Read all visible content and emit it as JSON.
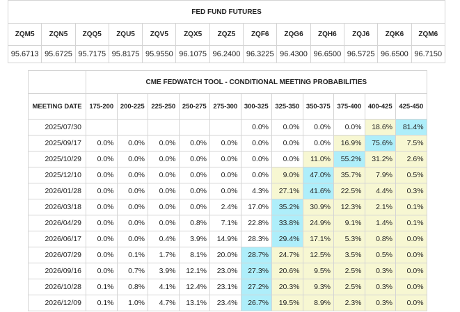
{
  "futures": {
    "title": "FED FUND FUTURES",
    "codes": [
      "ZQM5",
      "ZQN5",
      "ZQQ5",
      "ZQU5",
      "ZQV5",
      "ZQX5",
      "ZQZ5",
      "ZQF6",
      "ZQG6",
      "ZQH6",
      "ZQJ6",
      "ZQK6",
      "ZQM6"
    ],
    "prices": [
      "95.6713",
      "95.6725",
      "95.7175",
      "95.8175",
      "95.9550",
      "96.1075",
      "96.2400",
      "96.3225",
      "96.4300",
      "96.6500",
      "96.5725",
      "96.6500",
      "96.7150"
    ]
  },
  "probabilities": {
    "title": "CME FEDWATCH TOOL - CONDITIONAL MEETING PROBABILITIES",
    "date_header": "MEETING DATE",
    "ranges": [
      "175-200",
      "200-225",
      "225-250",
      "250-275",
      "275-300",
      "300-325",
      "325-350",
      "350-375",
      "375-400",
      "400-425",
      "425-450"
    ],
    "colors": {
      "highlight_max": "#aeeefa",
      "nonzero": "#f7f7d2"
    },
    "rows": [
      {
        "date": "2025/07/30",
        "values": [
          "",
          "",
          "",
          "",
          "",
          "0.0%",
          "0.0%",
          "0.0%",
          "0.0%",
          "18.6%",
          "81.4%"
        ],
        "styles": [
          "",
          "",
          "",
          "",
          "",
          "",
          "",
          "",
          "",
          "y",
          "b"
        ]
      },
      {
        "date": "2025/09/17",
        "values": [
          "0.0%",
          "0.0%",
          "0.0%",
          "0.0%",
          "0.0%",
          "0.0%",
          "0.0%",
          "0.0%",
          "16.9%",
          "75.6%",
          "7.5%"
        ],
        "styles": [
          "",
          "",
          "",
          "",
          "",
          "",
          "",
          "",
          "y",
          "b",
          "y"
        ]
      },
      {
        "date": "2025/10/29",
        "values": [
          "0.0%",
          "0.0%",
          "0.0%",
          "0.0%",
          "0.0%",
          "0.0%",
          "0.0%",
          "11.0%",
          "55.2%",
          "31.2%",
          "2.6%"
        ],
        "styles": [
          "",
          "",
          "",
          "",
          "",
          "",
          "",
          "y",
          "b",
          "y",
          "y"
        ]
      },
      {
        "date": "2025/12/10",
        "values": [
          "0.0%",
          "0.0%",
          "0.0%",
          "0.0%",
          "0.0%",
          "0.0%",
          "9.0%",
          "47.0%",
          "35.7%",
          "7.9%",
          "0.5%"
        ],
        "styles": [
          "",
          "",
          "",
          "",
          "",
          "",
          "y",
          "b",
          "y",
          "y",
          "y"
        ]
      },
      {
        "date": "2026/01/28",
        "values": [
          "0.0%",
          "0.0%",
          "0.0%",
          "0.0%",
          "0.0%",
          "4.3%",
          "27.1%",
          "41.6%",
          "22.5%",
          "4.4%",
          "0.3%"
        ],
        "styles": [
          "",
          "",
          "",
          "",
          "",
          "",
          "y",
          "b",
          "y",
          "y",
          "y"
        ]
      },
      {
        "date": "2026/03/18",
        "values": [
          "0.0%",
          "0.0%",
          "0.0%",
          "0.0%",
          "2.4%",
          "17.0%",
          "35.2%",
          "30.9%",
          "12.3%",
          "2.1%",
          "0.1%"
        ],
        "styles": [
          "",
          "",
          "",
          "",
          "",
          "",
          "b",
          "y",
          "y",
          "y",
          "y"
        ]
      },
      {
        "date": "2026/04/29",
        "values": [
          "0.0%",
          "0.0%",
          "0.0%",
          "0.8%",
          "7.1%",
          "22.8%",
          "33.8%",
          "24.9%",
          "9.1%",
          "1.4%",
          "0.1%"
        ],
        "styles": [
          "",
          "",
          "",
          "",
          "",
          "",
          "b",
          "y",
          "y",
          "y",
          "y"
        ]
      },
      {
        "date": "2026/06/17",
        "values": [
          "0.0%",
          "0.0%",
          "0.4%",
          "3.9%",
          "14.9%",
          "28.3%",
          "29.4%",
          "17.1%",
          "5.3%",
          "0.8%",
          "0.0%"
        ],
        "styles": [
          "",
          "",
          "",
          "",
          "",
          "",
          "b",
          "y",
          "y",
          "y",
          "y"
        ]
      },
      {
        "date": "2026/07/29",
        "values": [
          "0.0%",
          "0.1%",
          "1.7%",
          "8.1%",
          "20.0%",
          "28.7%",
          "24.7%",
          "12.5%",
          "3.5%",
          "0.5%",
          "0.0%"
        ],
        "styles": [
          "",
          "",
          "",
          "",
          "",
          "b",
          "y",
          "y",
          "y",
          "y",
          "y"
        ]
      },
      {
        "date": "2026/09/16",
        "values": [
          "0.0%",
          "0.7%",
          "3.9%",
          "12.1%",
          "23.0%",
          "27.3%",
          "20.6%",
          "9.5%",
          "2.5%",
          "0.3%",
          "0.0%"
        ],
        "styles": [
          "",
          "",
          "",
          "",
          "",
          "b",
          "y",
          "y",
          "y",
          "y",
          "y"
        ]
      },
      {
        "date": "2026/10/28",
        "values": [
          "0.1%",
          "0.8%",
          "4.1%",
          "12.4%",
          "23.1%",
          "27.2%",
          "20.3%",
          "9.3%",
          "2.5%",
          "0.3%",
          "0.0%"
        ],
        "styles": [
          "",
          "",
          "",
          "",
          "",
          "b",
          "y",
          "y",
          "y",
          "y",
          "y"
        ]
      },
      {
        "date": "2026/12/09",
        "values": [
          "0.1%",
          "1.0%",
          "4.7%",
          "13.1%",
          "23.4%",
          "26.7%",
          "19.5%",
          "8.9%",
          "2.3%",
          "0.3%",
          "0.0%"
        ],
        "styles": [
          "",
          "",
          "",
          "",
          "",
          "b",
          "y",
          "y",
          "y",
          "y",
          "y"
        ]
      }
    ]
  }
}
